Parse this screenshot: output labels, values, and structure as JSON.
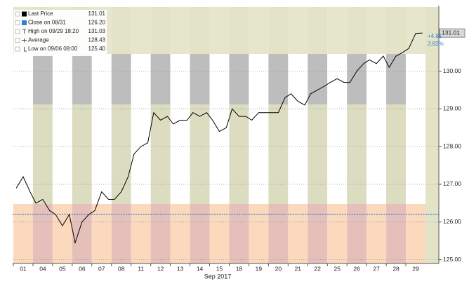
{
  "chart_data": {
    "type": "line",
    "x": [
      0.15,
      0.5,
      0.85,
      1.15,
      1.5,
      1.85,
      2.15,
      2.5,
      2.85,
      3.15,
      3.5,
      3.85,
      4.15,
      4.5,
      4.85,
      5.15,
      5.5,
      5.85,
      6.15,
      6.5,
      6.85,
      7.15,
      7.5,
      7.85,
      8.15,
      8.5,
      8.85,
      9.15,
      9.5,
      9.85,
      10.15,
      10.5,
      10.85,
      11.15,
      11.5,
      11.85,
      12.15,
      12.5,
      12.85,
      13.15,
      13.5,
      13.85,
      14.15,
      14.5,
      14.85,
      15.15,
      15.5,
      15.85,
      16.15,
      16.5,
      16.85,
      17.15,
      17.5,
      17.85,
      18.15,
      18.5,
      18.85,
      19.15,
      19.5,
      19.85,
      20.15,
      20.5,
      20.85
    ],
    "series": [
      {
        "name": "Last Price",
        "color": "#000000",
        "values": [
          126.9,
          127.2,
          126.8,
          126.5,
          126.6,
          126.3,
          126.2,
          125.9,
          126.2,
          125.45,
          126.0,
          126.2,
          126.3,
          126.8,
          126.6,
          126.6,
          126.8,
          127.2,
          127.8,
          128.0,
          128.1,
          128.9,
          128.7,
          128.8,
          128.6,
          128.7,
          128.7,
          128.9,
          128.8,
          128.9,
          128.7,
          128.4,
          128.5,
          129.0,
          128.8,
          128.8,
          128.7,
          128.9,
          128.9,
          128.9,
          128.9,
          129.3,
          129.4,
          129.2,
          129.1,
          129.4,
          129.5,
          129.6,
          129.7,
          129.8,
          129.7,
          129.7,
          130.0,
          130.2,
          130.3,
          130.2,
          130.4,
          130.1,
          130.4,
          130.5,
          130.6,
          131.0,
          131.01
        ]
      }
    ],
    "xlim": [
      0,
      21
    ],
    "xticks": [
      {
        "value": 0.5,
        "label": "01"
      },
      {
        "value": 1.5,
        "label": "04"
      },
      {
        "value": 2.5,
        "label": "05"
      },
      {
        "value": 3.5,
        "label": "06"
      },
      {
        "value": 4.5,
        "label": "07"
      },
      {
        "value": 5.5,
        "label": "08"
      },
      {
        "value": 6.5,
        "label": "11"
      },
      {
        "value": 7.5,
        "label": "12"
      },
      {
        "value": 8.5,
        "label": "13"
      },
      {
        "value": 9.5,
        "label": "14"
      },
      {
        "value": 10.5,
        "label": "15"
      },
      {
        "value": 11.5,
        "label": "18"
      },
      {
        "value": 12.5,
        "label": "19"
      },
      {
        "value": 13.5,
        "label": "20"
      },
      {
        "value": 14.5,
        "label": "21"
      },
      {
        "value": 15.5,
        "label": "22"
      },
      {
        "value": 16.5,
        "label": "25"
      },
      {
        "value": 17.5,
        "label": "26"
      },
      {
        "value": 18.5,
        "label": "27"
      },
      {
        "value": 19.5,
        "label": "28"
      },
      {
        "value": 20.5,
        "label": "29"
      }
    ],
    "xlabel": "Sep 2017",
    "ylim": [
      124.9,
      131.7
    ],
    "yticks": [
      {
        "value": 125,
        "label": "125.00"
      },
      {
        "value": 126,
        "label": "126.00"
      },
      {
        "value": 127,
        "label": "127.00"
      },
      {
        "value": 128,
        "label": "128.00"
      },
      {
        "value": 129,
        "label": "129.00"
      },
      {
        "value": 130,
        "label": "130.00"
      }
    ],
    "grid": true,
    "legend": [
      {
        "label": "Last Price",
        "value": 131.01,
        "value_label": "131.01"
      },
      {
        "label": "Close on 08/31",
        "value": 126.2,
        "value_label": "126.20"
      },
      {
        "label": "High on 09/29 18:20",
        "value": 131.03,
        "value_label": "131.03"
      },
      {
        "label": "Average",
        "value": 128.43,
        "value_label": "128.43"
      },
      {
        "label": "Low on 09/06 08:00",
        "value": 125.4,
        "value_label": "125.40"
      }
    ],
    "last_label": {
      "value": 131.01,
      "label": "131.01"
    },
    "change": {
      "value": 4.81,
      "label": "+4.81"
    },
    "change_pct": {
      "value": 3.82,
      "label": "3.82%"
    }
  }
}
